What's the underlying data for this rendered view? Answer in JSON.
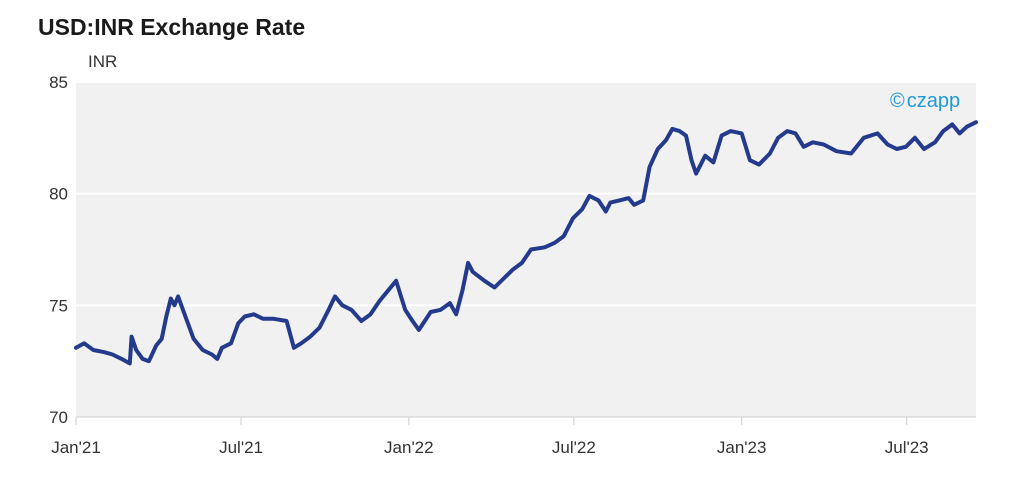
{
  "chart_data": {
    "type": "line",
    "title": "USD:INR Exchange Rate",
    "ylabel": "INR",
    "xlabel": "",
    "ylim": [
      70,
      85
    ],
    "y_ticks": [
      70,
      75,
      80,
      85
    ],
    "x_range": [
      "2021-01-01",
      "2023-09-15"
    ],
    "x_ticks": [
      {
        "date": "2021-01-01",
        "label": "Jan'21"
      },
      {
        "date": "2021-07-01",
        "label": "Jul'21"
      },
      {
        "date": "2022-01-01",
        "label": "Jan'22"
      },
      {
        "date": "2022-07-01",
        "label": "Jul'22"
      },
      {
        "date": "2023-01-01",
        "label": "Jan'23"
      },
      {
        "date": "2023-07-01",
        "label": "Jul'23"
      }
    ],
    "grid": true,
    "line_color": "#243a8c",
    "series": [
      {
        "values": [
          [
            "2021-01-01",
            73.1
          ],
          [
            "2021-01-10",
            73.3
          ],
          [
            "2021-01-20",
            73.0
          ],
          [
            "2021-02-01",
            72.9
          ],
          [
            "2021-02-10",
            72.8
          ],
          [
            "2021-02-20",
            72.6
          ],
          [
            "2021-03-01",
            72.4
          ],
          [
            "2021-03-03",
            73.6
          ],
          [
            "2021-03-08",
            73.0
          ],
          [
            "2021-03-15",
            72.6
          ],
          [
            "2021-03-22",
            72.5
          ],
          [
            "2021-03-30",
            73.2
          ],
          [
            "2021-04-05",
            73.5
          ],
          [
            "2021-04-10",
            74.5
          ],
          [
            "2021-04-15",
            75.3
          ],
          [
            "2021-04-19",
            75.0
          ],
          [
            "2021-04-23",
            75.4
          ],
          [
            "2021-05-01",
            74.5
          ],
          [
            "2021-05-10",
            73.5
          ],
          [
            "2021-05-20",
            73.0
          ],
          [
            "2021-05-30",
            72.8
          ],
          [
            "2021-06-05",
            72.6
          ],
          [
            "2021-06-10",
            73.1
          ],
          [
            "2021-06-20",
            73.3
          ],
          [
            "2021-06-28",
            74.2
          ],
          [
            "2021-07-05",
            74.5
          ],
          [
            "2021-07-15",
            74.6
          ],
          [
            "2021-07-25",
            74.4
          ],
          [
            "2021-08-05",
            74.4
          ],
          [
            "2021-08-20",
            74.3
          ],
          [
            "2021-08-28",
            73.1
          ],
          [
            "2021-09-05",
            73.3
          ],
          [
            "2021-09-15",
            73.6
          ],
          [
            "2021-09-25",
            74.0
          ],
          [
            "2021-10-05",
            74.8
          ],
          [
            "2021-10-12",
            75.4
          ],
          [
            "2021-10-20",
            75.0
          ],
          [
            "2021-10-30",
            74.8
          ],
          [
            "2021-11-10",
            74.3
          ],
          [
            "2021-11-20",
            74.6
          ],
          [
            "2021-11-30",
            75.2
          ],
          [
            "2021-12-10",
            75.7
          ],
          [
            "2021-12-18",
            76.1
          ],
          [
            "2021-12-28",
            74.8
          ],
          [
            "2022-01-05",
            74.3
          ],
          [
            "2022-01-12",
            73.9
          ],
          [
            "2022-01-25",
            74.7
          ],
          [
            "2022-02-05",
            74.8
          ],
          [
            "2022-02-15",
            75.1
          ],
          [
            "2022-02-22",
            74.6
          ],
          [
            "2022-03-01",
            75.7
          ],
          [
            "2022-03-07",
            76.9
          ],
          [
            "2022-03-12",
            76.5
          ],
          [
            "2022-03-25",
            76.1
          ],
          [
            "2022-04-05",
            75.8
          ],
          [
            "2022-04-15",
            76.2
          ],
          [
            "2022-04-25",
            76.6
          ],
          [
            "2022-05-05",
            76.9
          ],
          [
            "2022-05-15",
            77.5
          ],
          [
            "2022-05-30",
            77.6
          ],
          [
            "2022-06-10",
            77.8
          ],
          [
            "2022-06-20",
            78.1
          ],
          [
            "2022-06-30",
            78.9
          ],
          [
            "2022-07-10",
            79.3
          ],
          [
            "2022-07-18",
            79.9
          ],
          [
            "2022-07-28",
            79.7
          ],
          [
            "2022-08-05",
            79.2
          ],
          [
            "2022-08-10",
            79.6
          ],
          [
            "2022-08-20",
            79.7
          ],
          [
            "2022-08-30",
            79.8
          ],
          [
            "2022-09-05",
            79.5
          ],
          [
            "2022-09-15",
            79.7
          ],
          [
            "2022-09-22",
            81.2
          ],
          [
            "2022-10-01",
            82.0
          ],
          [
            "2022-10-10",
            82.4
          ],
          [
            "2022-10-17",
            82.9
          ],
          [
            "2022-10-25",
            82.8
          ],
          [
            "2022-11-01",
            82.6
          ],
          [
            "2022-11-07",
            81.5
          ],
          [
            "2022-11-12",
            80.9
          ],
          [
            "2022-11-22",
            81.7
          ],
          [
            "2022-12-01",
            81.4
          ],
          [
            "2022-12-10",
            82.6
          ],
          [
            "2022-12-20",
            82.8
          ],
          [
            "2023-01-01",
            82.7
          ],
          [
            "2023-01-10",
            81.5
          ],
          [
            "2023-01-20",
            81.3
          ],
          [
            "2023-02-01",
            81.8
          ],
          [
            "2023-02-10",
            82.5
          ],
          [
            "2023-02-20",
            82.8
          ],
          [
            "2023-03-01",
            82.7
          ],
          [
            "2023-03-10",
            82.1
          ],
          [
            "2023-03-20",
            82.3
          ],
          [
            "2023-04-01",
            82.2
          ],
          [
            "2023-04-15",
            81.9
          ],
          [
            "2023-05-01",
            81.8
          ],
          [
            "2023-05-15",
            82.5
          ],
          [
            "2023-05-30",
            82.7
          ],
          [
            "2023-06-10",
            82.2
          ],
          [
            "2023-06-20",
            82.0
          ],
          [
            "2023-06-30",
            82.1
          ],
          [
            "2023-07-10",
            82.5
          ],
          [
            "2023-07-20",
            82.0
          ],
          [
            "2023-08-01",
            82.3
          ],
          [
            "2023-08-10",
            82.8
          ],
          [
            "2023-08-20",
            83.1
          ],
          [
            "2023-08-28",
            82.7
          ],
          [
            "2023-09-05",
            83.0
          ],
          [
            "2023-09-15",
            83.2
          ]
        ]
      }
    ]
  },
  "brand": {
    "icon": "copyright-icon",
    "text": "czapp"
  }
}
